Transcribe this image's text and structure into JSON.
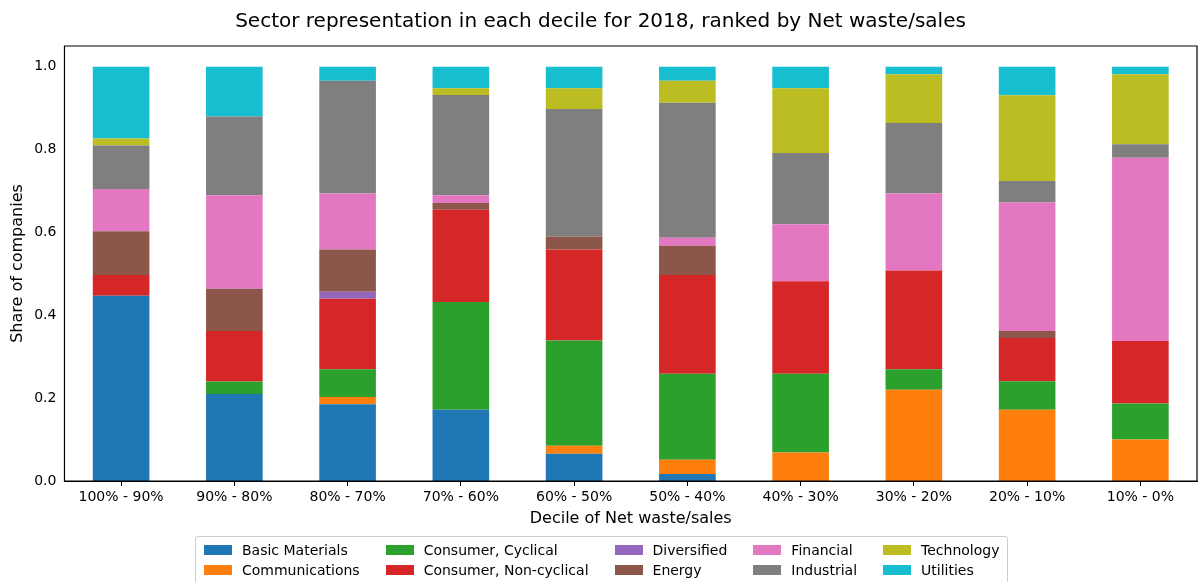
{
  "chart_data": {
    "type": "bar",
    "stacked": true,
    "title": "Sector representation in each decile for 2018, ranked by Net waste/sales",
    "xlabel": "Decile of Net waste/sales",
    "ylabel": "Share of companies",
    "categories": [
      "100% - 90%",
      "90% - 80%",
      "80% - 70%",
      "70% - 60%",
      "60% - 50%",
      "50% - 40%",
      "40% - 30%",
      "30% - 20%",
      "20% - 10%",
      "10% - 0%"
    ],
    "series": [
      {
        "name": "Basic Materials",
        "color": "#1f77b4",
        "values": [
          0.447,
          0.21,
          0.185,
          0.172,
          0.066,
          0.017,
          0,
          0,
          0,
          0
        ]
      },
      {
        "name": "Communications",
        "color": "#ff7f0e",
        "values": [
          0,
          0,
          0.018,
          0,
          0.019,
          0.034,
          0.069,
          0.22,
          0.172,
          0.1
        ]
      },
      {
        "name": "Consumer, Cyclical",
        "color": "#2ca02c",
        "values": [
          0,
          0.03,
          0.067,
          0.26,
          0.254,
          0.208,
          0.19,
          0.05,
          0.069,
          0.087
        ]
      },
      {
        "name": "Consumer, Non-cyclical",
        "color": "#d62728",
        "values": [
          0.05,
          0.122,
          0.17,
          0.223,
          0.22,
          0.238,
          0.223,
          0.238,
          0.104,
          0.151
        ]
      },
      {
        "name": "Diversified",
        "color": "#9467bd",
        "values": [
          0,
          0,
          0.017,
          0,
          0,
          0,
          0,
          0,
          0,
          0
        ]
      },
      {
        "name": "Energy",
        "color": "#8c564b",
        "values": [
          0.106,
          0.102,
          0.102,
          0.016,
          0.031,
          0.071,
          0,
          0,
          0.017,
          0
        ]
      },
      {
        "name": "Financial",
        "color": "#e377c2",
        "values": [
          0.102,
          0.226,
          0.135,
          0.019,
          0,
          0.019,
          0.138,
          0.186,
          0.31,
          0.442
        ]
      },
      {
        "name": "Industrial",
        "color": "#7f7f7f",
        "values": [
          0.105,
          0.19,
          0.272,
          0.242,
          0.308,
          0.326,
          0.172,
          0.17,
          0.052,
          0.033
        ]
      },
      {
        "name": "Technology",
        "color": "#bcbd22",
        "values": [
          0.017,
          0,
          0,
          0.016,
          0.05,
          0.053,
          0.156,
          0.118,
          0.207,
          0.169
        ]
      },
      {
        "name": "Utilities",
        "color": "#17becf",
        "values": [
          0.173,
          0.12,
          0.034,
          0.052,
          0.052,
          0.034,
          0.052,
          0.018,
          0.069,
          0.018
        ]
      }
    ],
    "ylim": [
      0,
      1.05
    ],
    "yticks": [
      {
        "value": 0,
        "label": "0.0"
      },
      {
        "value": 0.2,
        "label": "0.2"
      },
      {
        "value": 0.4,
        "label": "0.4"
      },
      {
        "value": 0.6,
        "label": "0.6"
      },
      {
        "value": 0.8,
        "label": "0.8"
      },
      {
        "value": 1,
        "label": "1.0"
      }
    ],
    "grid": false,
    "legend": "bottom"
  }
}
